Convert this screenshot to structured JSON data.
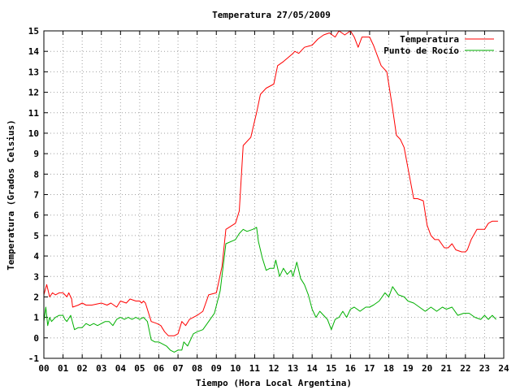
{
  "chart_data": {
    "type": "line",
    "title": "Temperatura 27/05/2009",
    "xlabel": "Tiempo (Hora Local Argentina)",
    "ylabel": "Temperatura (Grados Celsius)",
    "xlim": [
      0,
      24
    ],
    "ylim": [
      -1,
      15
    ],
    "xticks": [
      "00",
      "01",
      "02",
      "03",
      "04",
      "05",
      "06",
      "07",
      "08",
      "09",
      "10",
      "11",
      "12",
      "13",
      "14",
      "15",
      "16",
      "17",
      "18",
      "19",
      "20",
      "21",
      "22",
      "23",
      "24"
    ],
    "yticks": [
      "-1",
      "0",
      "1",
      "2",
      "3",
      "4",
      "5",
      "6",
      "7",
      "8",
      "9",
      "10",
      "11",
      "12",
      "13",
      "14",
      "15"
    ],
    "grid": true,
    "legend_position": "top-right",
    "series": [
      {
        "name": "Temperatura",
        "color": "#ff0000",
        "x": [
          0.0,
          0.15,
          0.3,
          0.45,
          0.6,
          0.8,
          1.0,
          1.2,
          1.3,
          1.45,
          1.5,
          1.8,
          2.0,
          2.2,
          2.5,
          3.0,
          3.3,
          3.5,
          3.8,
          4.0,
          4.3,
          4.5,
          4.8,
          5.0,
          5.1,
          5.2,
          5.3,
          5.6,
          5.9,
          6.1,
          6.3,
          6.5,
          6.8,
          7.0,
          7.2,
          7.4,
          7.6,
          8.0,
          8.3,
          8.6,
          9.0,
          9.3,
          9.5,
          10.0,
          10.2,
          10.4,
          10.8,
          11.0,
          11.1,
          11.3,
          11.6,
          11.8,
          12.0,
          12.2,
          12.5,
          13.0,
          13.1,
          13.3,
          13.6,
          14.0,
          14.3,
          14.6,
          14.9,
          15.2,
          15.4,
          15.7,
          16.0,
          16.2,
          16.4,
          16.6,
          17.0,
          17.2,
          17.4,
          17.6,
          17.9,
          18.0,
          18.2,
          18.4,
          18.6,
          18.8,
          19.0,
          19.3,
          19.5,
          19.8,
          20.0,
          20.2,
          20.4,
          20.6,
          20.9,
          21.1,
          21.3,
          21.5,
          21.8,
          22.0,
          22.1,
          22.3,
          22.6,
          23.0,
          23.2,
          23.4,
          23.7
        ],
        "values": [
          2.1,
          2.6,
          2.0,
          2.2,
          2.1,
          2.2,
          2.2,
          2.0,
          2.2,
          1.9,
          1.5,
          1.6,
          1.7,
          1.6,
          1.6,
          1.7,
          1.6,
          1.7,
          1.5,
          1.8,
          1.7,
          1.9,
          1.8,
          1.8,
          1.7,
          1.8,
          1.7,
          0.8,
          0.7,
          0.6,
          0.3,
          0.1,
          0.1,
          0.2,
          0.8,
          0.6,
          0.9,
          1.1,
          1.3,
          2.1,
          2.2,
          3.5,
          5.3,
          5.6,
          6.2,
          9.4,
          9.8,
          10.6,
          11.0,
          11.9,
          12.2,
          12.3,
          12.4,
          13.3,
          13.5,
          13.9,
          14.0,
          13.9,
          14.2,
          14.3,
          14.6,
          14.8,
          14.9,
          14.7,
          15.0,
          14.8,
          15.0,
          14.7,
          14.2,
          14.7,
          14.7,
          14.3,
          13.8,
          13.3,
          13.0,
          12.4,
          11.2,
          9.9,
          9.7,
          9.3,
          8.3,
          6.8,
          6.8,
          6.7,
          5.5,
          5.0,
          4.8,
          4.8,
          4.4,
          4.4,
          4.6,
          4.3,
          4.2,
          4.2,
          4.3,
          4.8,
          5.3,
          5.3,
          5.6,
          5.7,
          5.7
        ]
      },
      {
        "name": "Punto de Rocío",
        "color": "#00b000",
        "x": [
          0.0,
          0.1,
          0.2,
          0.3,
          0.4,
          0.6,
          0.8,
          1.0,
          1.1,
          1.2,
          1.4,
          1.6,
          1.8,
          2.0,
          2.2,
          2.4,
          2.6,
          2.8,
          3.0,
          3.2,
          3.4,
          3.6,
          3.8,
          4.0,
          4.2,
          4.4,
          4.6,
          4.8,
          5.0,
          5.2,
          5.4,
          5.6,
          5.8,
          6.0,
          6.2,
          6.4,
          6.6,
          6.8,
          7.0,
          7.2,
          7.3,
          7.5,
          7.8,
          8.0,
          8.3,
          8.6,
          8.9,
          9.2,
          9.5,
          10.0,
          10.2,
          10.4,
          10.6,
          10.9,
          11.1,
          11.2,
          11.4,
          11.6,
          11.8,
          12.0,
          12.1,
          12.3,
          12.5,
          12.7,
          12.9,
          13.0,
          13.2,
          13.4,
          13.6,
          13.8,
          14.0,
          14.2,
          14.4,
          14.6,
          14.8,
          15.0,
          15.2,
          15.4,
          15.6,
          15.8,
          16.0,
          16.2,
          16.5,
          16.8,
          17.0,
          17.2,
          17.5,
          17.8,
          18.0,
          18.2,
          18.5,
          18.8,
          19.0,
          19.3,
          19.6,
          19.9,
          20.2,
          20.5,
          20.8,
          21.0,
          21.3,
          21.6,
          21.9,
          22.2,
          22.5,
          22.8,
          23.0,
          23.2,
          23.4,
          23.6
        ],
        "values": [
          0.8,
          1.5,
          0.6,
          1.0,
          0.8,
          1.0,
          1.1,
          1.1,
          0.9,
          0.8,
          1.1,
          0.4,
          0.5,
          0.5,
          0.7,
          0.6,
          0.7,
          0.6,
          0.7,
          0.8,
          0.8,
          0.6,
          0.9,
          1.0,
          0.9,
          1.0,
          0.9,
          1.0,
          0.9,
          1.0,
          0.8,
          -0.1,
          -0.2,
          -0.2,
          -0.3,
          -0.4,
          -0.6,
          -0.7,
          -0.6,
          -0.6,
          -0.2,
          -0.4,
          0.2,
          0.3,
          0.4,
          0.8,
          1.2,
          2.3,
          4.6,
          4.8,
          5.1,
          5.3,
          5.2,
          5.3,
          5.4,
          4.7,
          3.9,
          3.3,
          3.4,
          3.4,
          3.8,
          3.0,
          3.4,
          3.1,
          3.3,
          3.0,
          3.7,
          2.9,
          2.6,
          2.1,
          1.4,
          1.0,
          1.3,
          1.1,
          0.9,
          0.4,
          0.9,
          1.0,
          1.3,
          1.0,
          1.4,
          1.5,
          1.3,
          1.5,
          1.5,
          1.6,
          1.8,
          2.2,
          2.0,
          2.5,
          2.1,
          2.0,
          1.8,
          1.7,
          1.5,
          1.3,
          1.5,
          1.3,
          1.5,
          1.4,
          1.5,
          1.1,
          1.2,
          1.2,
          1.0,
          0.9,
          1.1,
          0.9,
          1.1,
          0.9
        ]
      }
    ]
  }
}
